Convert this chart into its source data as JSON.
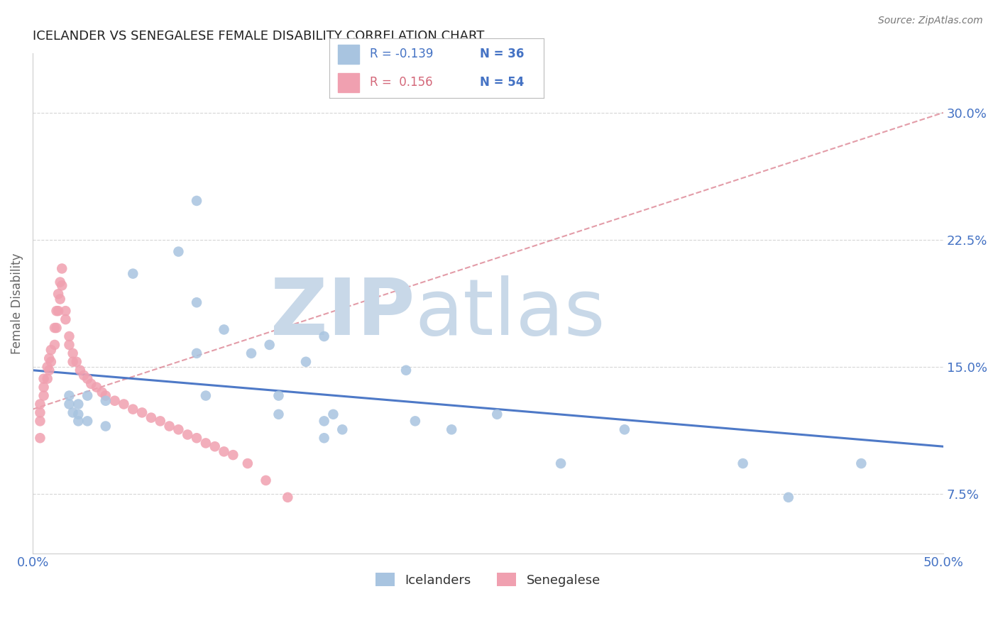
{
  "title": "ICELANDER VS SENEGALESE FEMALE DISABILITY CORRELATION CHART",
  "source": "Source: ZipAtlas.com",
  "ylabel_label": "Female Disability",
  "xlim": [
    0.0,
    0.5
  ],
  "ylim": [
    0.04,
    0.335
  ],
  "xticks": [
    0.0,
    0.1,
    0.2,
    0.3,
    0.4,
    0.5
  ],
  "xtick_labels": [
    "0.0%",
    "",
    "",
    "",
    "",
    "50.0%"
  ],
  "ytick_labels": [
    "7.5%",
    "15.0%",
    "22.5%",
    "30.0%"
  ],
  "ytick_values": [
    0.075,
    0.15,
    0.225,
    0.3
  ],
  "color_icelander": "#a8c4e0",
  "color_senegalese": "#f0a0b0",
  "color_line_icelander": "#4472c4",
  "color_line_senegalese": "#d4687a",
  "color_axis_labels": "#4472c4",
  "watermark_zip": "ZIP",
  "watermark_atlas": "atlas",
  "watermark_color": "#c8d8e8",
  "icelander_x": [
    0.02,
    0.02,
    0.022,
    0.025,
    0.025,
    0.025,
    0.03,
    0.03,
    0.04,
    0.04,
    0.055,
    0.09,
    0.08,
    0.09,
    0.105,
    0.09,
    0.095,
    0.12,
    0.135,
    0.135,
    0.15,
    0.16,
    0.165,
    0.16,
    0.17,
    0.16,
    0.205,
    0.21,
    0.23,
    0.255,
    0.29,
    0.325,
    0.39,
    0.415,
    0.455,
    0.13
  ],
  "icelander_y": [
    0.133,
    0.128,
    0.123,
    0.128,
    0.122,
    0.118,
    0.133,
    0.118,
    0.13,
    0.115,
    0.205,
    0.248,
    0.218,
    0.188,
    0.172,
    0.158,
    0.133,
    0.158,
    0.133,
    0.122,
    0.153,
    0.168,
    0.122,
    0.118,
    0.113,
    0.108,
    0.148,
    0.118,
    0.113,
    0.122,
    0.093,
    0.113,
    0.093,
    0.073,
    0.093,
    0.163
  ],
  "senegalese_x": [
    0.004,
    0.004,
    0.004,
    0.004,
    0.006,
    0.006,
    0.006,
    0.008,
    0.008,
    0.009,
    0.009,
    0.01,
    0.01,
    0.012,
    0.012,
    0.013,
    0.013,
    0.014,
    0.014,
    0.015,
    0.015,
    0.016,
    0.016,
    0.018,
    0.018,
    0.02,
    0.02,
    0.022,
    0.022,
    0.024,
    0.026,
    0.028,
    0.03,
    0.032,
    0.035,
    0.038,
    0.04,
    0.045,
    0.05,
    0.055,
    0.06,
    0.065,
    0.07,
    0.075,
    0.08,
    0.085,
    0.09,
    0.095,
    0.1,
    0.105,
    0.11,
    0.118,
    0.128,
    0.14
  ],
  "senegalese_y": [
    0.128,
    0.123,
    0.118,
    0.108,
    0.143,
    0.138,
    0.133,
    0.15,
    0.143,
    0.155,
    0.148,
    0.16,
    0.153,
    0.173,
    0.163,
    0.183,
    0.173,
    0.193,
    0.183,
    0.2,
    0.19,
    0.208,
    0.198,
    0.183,
    0.178,
    0.168,
    0.163,
    0.158,
    0.153,
    0.153,
    0.148,
    0.145,
    0.143,
    0.14,
    0.138,
    0.135,
    0.133,
    0.13,
    0.128,
    0.125,
    0.123,
    0.12,
    0.118,
    0.115,
    0.113,
    0.11,
    0.108,
    0.105,
    0.103,
    0.1,
    0.098,
    0.093,
    0.083,
    0.073
  ],
  "blue_line_x": [
    0.0,
    0.5
  ],
  "blue_line_y": [
    0.148,
    0.103
  ],
  "pink_line_x": [
    0.0,
    0.5
  ],
  "pink_line_y": [
    0.125,
    0.3
  ]
}
